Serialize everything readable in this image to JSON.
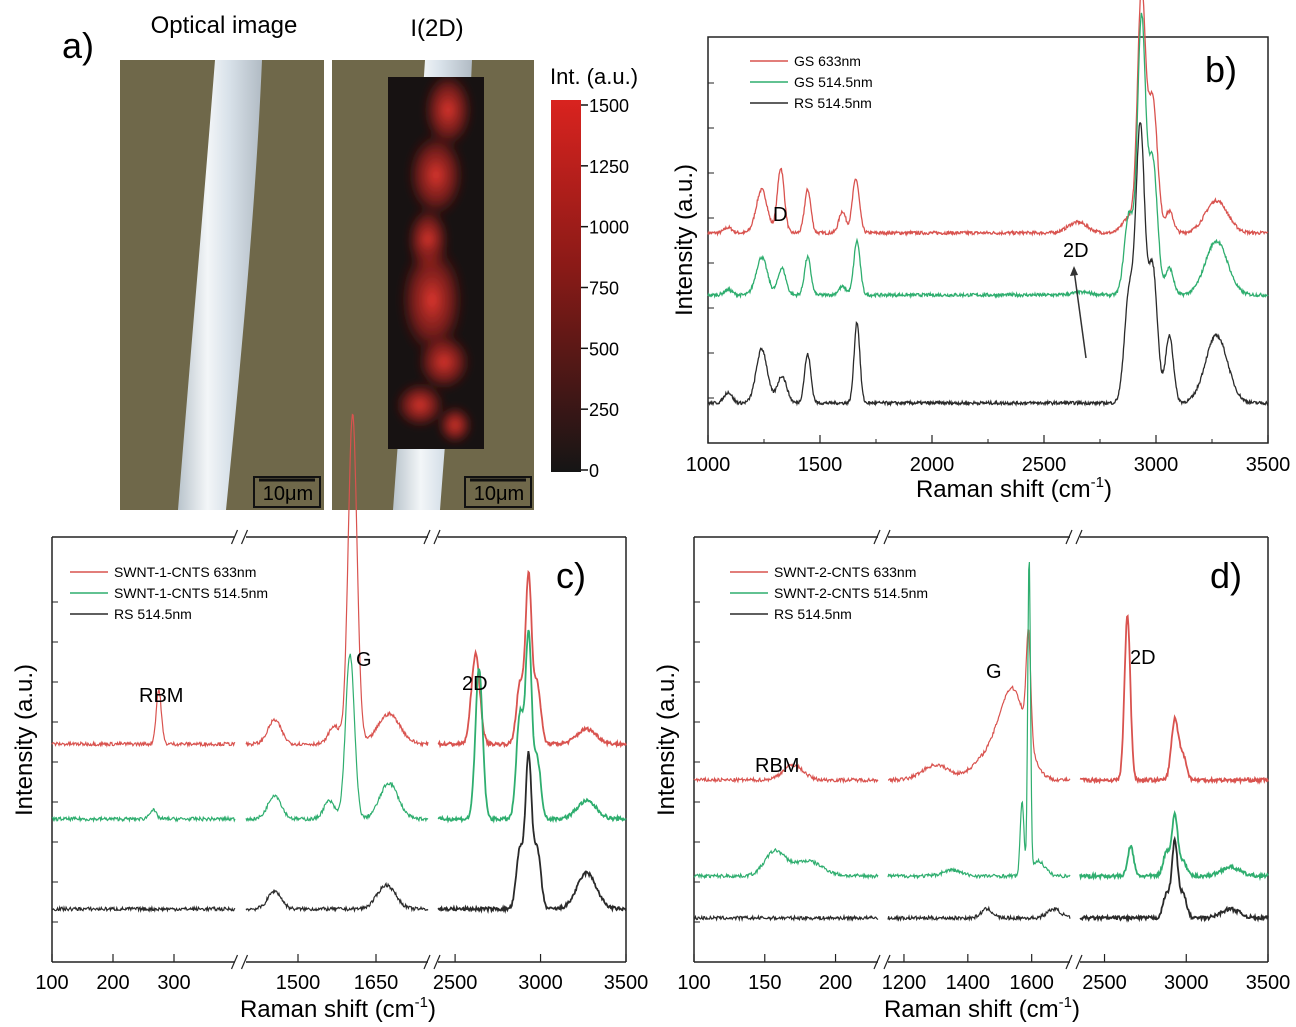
{
  "panel_a": {
    "label": "a)",
    "optical_title": "Optical image",
    "map_title": "I(2D)",
    "scalebar_optical": "10μm",
    "scalebar_map": "10μm",
    "colorbar_title": "Int. (a.u.)",
    "colorbar_ticks": [
      "1500",
      "1250",
      "1000",
      "750",
      "500",
      "250",
      "0"
    ],
    "colors": {
      "background": "#6f684a",
      "fiber": "#e9eef2",
      "map_high": "#d9231f",
      "map_low": "#151515"
    }
  },
  "panel_b": {
    "label": "b)",
    "ylabel": "Intensity (a.u.)",
    "xlabel": "Raman shift (cm",
    "xlabel_sup": "-1",
    "xlabel_close": ")",
    "xticks": [
      "1000",
      "1500",
      "2000",
      "2500",
      "3000",
      "3500"
    ],
    "legend": [
      "GS 633nm",
      "GS 514.5nm",
      "RS 514.5nm"
    ],
    "annotations": {
      "d": "D",
      "two_d": "2D"
    }
  },
  "panel_c": {
    "label": "c)",
    "ylabel": "Intensity (a.u.)",
    "xlabel": "Raman shift (cm",
    "xlabel_sup": "-1",
    "xlabel_close": ")",
    "segments": [
      {
        "ticks": [
          "100",
          "200",
          "300"
        ]
      },
      {
        "ticks": [
          "1500",
          "1650"
        ]
      },
      {
        "ticks": [
          "2500",
          "3000",
          "3500"
        ]
      }
    ],
    "legend": [
      "SWNT-1-CNTS 633nm",
      "SWNT-1-CNTS 514.5nm",
      "RS 514.5nm"
    ],
    "annotations": {
      "rbm": "RBM",
      "g": "G",
      "two_d": "2D"
    }
  },
  "panel_d": {
    "label": "d)",
    "ylabel": "Intensity (a.u.)",
    "xlabel": "Raman shift (cm",
    "xlabel_sup": "-1",
    "xlabel_close": ")",
    "segments": [
      {
        "ticks": [
          "100",
          "150",
          "200"
        ]
      },
      {
        "ticks": [
          "1200",
          "1400",
          "1600"
        ]
      },
      {
        "ticks": [
          "2500",
          "3000",
          "3500"
        ]
      }
    ],
    "legend": [
      "SWNT-2-CNTS 633nm",
      "SWNT-2-CNTS 514.5nm",
      "RS 514.5nm"
    ],
    "annotations": {
      "rbm": "RBM",
      "g": "G",
      "two_d": "2D"
    }
  },
  "chart_data": [
    {
      "type": "line",
      "panel": "b",
      "xlabel": "Raman shift (cm-1)",
      "ylabel": "Intensity (a.u.)",
      "xlim": [
        1000,
        3500
      ],
      "series": [
        {
          "name": "GS 633nm",
          "color": "#d9534f",
          "baseline": 0.63,
          "peaks": [
            [
              1090,
              0.02,
              25
            ],
            [
              1240,
              0.16,
              35
            ],
            [
              1325,
              0.24,
              22
            ],
            [
              1445,
              0.16,
              20
            ],
            [
              1600,
              0.08,
              22
            ],
            [
              1660,
              0.2,
              22
            ],
            [
              2650,
              0.04,
              60
            ],
            [
              2880,
              0.06,
              40
            ],
            [
              2935,
              0.88,
              25
            ],
            [
              2985,
              0.5,
              30
            ],
            [
              3060,
              0.08,
              25
            ],
            [
              3270,
              0.12,
              70
            ]
          ]
        },
        {
          "name": "GS 514.5nm",
          "color": "#2fae6f",
          "baseline": 0.4,
          "peaks": [
            [
              1090,
              0.02,
              25
            ],
            [
              1240,
              0.14,
              35
            ],
            [
              1330,
              0.1,
              25
            ],
            [
              1445,
              0.14,
              20
            ],
            [
              1600,
              0.03,
              25
            ],
            [
              1665,
              0.2,
              20
            ],
            [
              2670,
              0.01,
              60
            ],
            [
              2880,
              0.3,
              30
            ],
            [
              2935,
              1.0,
              25
            ],
            [
              2985,
              0.5,
              30
            ],
            [
              3060,
              0.1,
              25
            ],
            [
              3270,
              0.2,
              70
            ]
          ]
        },
        {
          "name": "RS 514.5nm",
          "color": "#2a2a2a",
          "baseline": 0.0,
          "peaks": [
            [
              1090,
              0.04,
              25
            ],
            [
              1240,
              0.2,
              35
            ],
            [
              1330,
              0.1,
              30
            ],
            [
              1445,
              0.18,
              20
            ],
            [
              1665,
              0.3,
              18
            ],
            [
              2880,
              0.4,
              30
            ],
            [
              2930,
              1.0,
              28
            ],
            [
              2985,
              0.5,
              30
            ],
            [
              3060,
              0.25,
              25
            ],
            [
              3270,
              0.25,
              70
            ]
          ]
        }
      ]
    },
    {
      "type": "line",
      "panel": "c",
      "xlabel": "Raman shift (cm-1)",
      "ylabel": "Intensity (a.u.)",
      "segments": [
        [
          100,
          400
        ],
        [
          1400,
          1750
        ],
        [
          2400,
          3500
        ]
      ],
      "series": [
        {
          "name": "SWNT-1-CNTS 633nm",
          "color": "#d9534f",
          "baseline": 0.6,
          "segments": [
            [
              [
                275,
                0.18,
                6
              ]
            ],
            [
              [
                1455,
                0.08,
                18
              ],
              [
                1570,
                0.06,
                15
              ],
              [
                1605,
                1.1,
                12
              ],
              [
                1675,
                0.1,
                30
              ]
            ],
            [
              [
                2620,
                0.3,
                35
              ],
              [
                2880,
                0.2,
                30
              ],
              [
                2930,
                0.55,
                25
              ],
              [
                2980,
                0.2,
                30
              ],
              [
                3270,
                0.05,
                80
              ]
            ]
          ]
        },
        {
          "name": "SWNT-1-CNTS 514.5nm",
          "color": "#2fae6f",
          "baseline": 0.35,
          "segments": [
            [
              [
                265,
                0.03,
                8
              ]
            ],
            [
              [
                1455,
                0.08,
                18
              ],
              [
                1560,
                0.06,
                15
              ],
              [
                1600,
                0.55,
                12
              ],
              [
                1675,
                0.12,
                25
              ]
            ],
            [
              [
                2640,
                0.5,
                30
              ],
              [
                2880,
                0.35,
                30
              ],
              [
                2930,
                0.6,
                25
              ],
              [
                2980,
                0.2,
                30
              ],
              [
                3270,
                0.06,
                80
              ]
            ]
          ]
        },
        {
          "name": "RS 514.5nm",
          "color": "#2a2a2a",
          "baseline": 0.05,
          "segments": [
            [],
            [
              [
                1455,
                0.06,
                18
              ],
              [
                1670,
                0.08,
                25
              ]
            ],
            [
              [
                2880,
                0.2,
                30
              ],
              [
                2930,
                0.5,
                25
              ],
              [
                2980,
                0.2,
                30
              ],
              [
                3270,
                0.12,
                80
              ]
            ]
          ]
        }
      ]
    },
    {
      "type": "line",
      "panel": "d",
      "xlabel": "Raman shift (cm-1)",
      "ylabel": "Intensity (a.u.)",
      "segments": [
        [
          100,
          230
        ],
        [
          1150,
          1720
        ],
        [
          2350,
          3500
        ]
      ],
      "series": [
        {
          "name": "SWNT-2-CNTS 633nm",
          "color": "#d9534f",
          "baseline": 0.48,
          "segments": [
            [
              [
                170,
                0.05,
                10
              ]
            ],
            [
              [
                1300,
                0.05,
                60
              ],
              [
                1450,
                0.06,
                60
              ],
              [
                1540,
                0.3,
                60
              ],
              [
                1590,
                0.35,
                10
              ]
            ],
            [
              [
                2640,
                0.55,
                25
              ],
              [
                2930,
                0.2,
                30
              ],
              [
                2980,
                0.08,
                30
              ]
            ]
          ]
        },
        {
          "name": "SWNT-2-CNTS 514.5nm",
          "color": "#2fae6f",
          "baseline": 0.16,
          "segments": [
            [
              [
                157,
                0.08,
                10
              ],
              [
                180,
                0.05,
                15
              ]
            ],
            [
              [
                1350,
                0.02,
                40
              ],
              [
                1570,
                0.25,
                8
              ],
              [
                1592,
                1.05,
                6
              ],
              [
                1620,
                0.05,
                30
              ]
            ],
            [
              [
                2660,
                0.1,
                25
              ],
              [
                2880,
                0.08,
                30
              ],
              [
                2930,
                0.2,
                25
              ],
              [
                2980,
                0.05,
                30
              ],
              [
                3270,
                0.03,
                80
              ]
            ]
          ]
        },
        {
          "name": "RS 514.5nm",
          "color": "#2a2a2a",
          "baseline": 0.02,
          "segments": [
            [],
            [
              [
                1460,
                0.03,
                25
              ],
              [
                1670,
                0.03,
                30
              ]
            ],
            [
              [
                2880,
                0.08,
                30
              ],
              [
                2930,
                0.25,
                25
              ],
              [
                2980,
                0.08,
                30
              ],
              [
                3270,
                0.03,
                80
              ]
            ]
          ]
        }
      ]
    }
  ]
}
